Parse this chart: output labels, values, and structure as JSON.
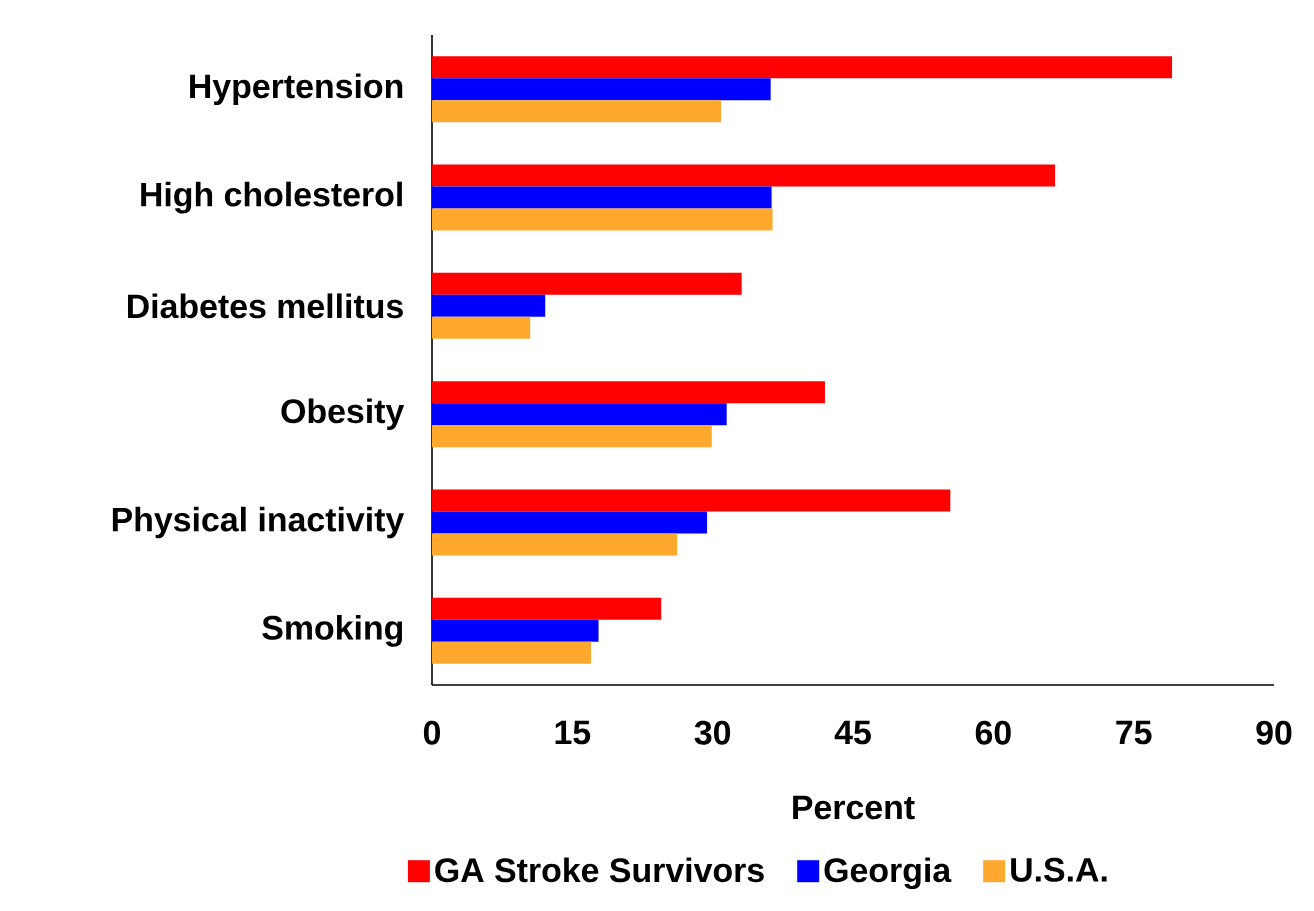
{
  "chart_data": {
    "type": "bar",
    "orientation": "horizontal",
    "xlabel": "Percent",
    "categories": [
      "Hypertension",
      "High cholesterol",
      "Diabetes mellitus",
      "Obesity",
      "Physical inactivity",
      "Smoking"
    ],
    "series": [
      {
        "name": "GA Stroke Survivors",
        "color": "#ff0000",
        "values": [
          79.1,
          66.6,
          33.1,
          42.0,
          55.4,
          24.5
        ]
      },
      {
        "name": "Georgia",
        "color": "#0000ff",
        "values": [
          36.2,
          36.3,
          12.1,
          31.5,
          29.4,
          17.8
        ]
      },
      {
        "name": "U.S.A.",
        "color": "#ffa82e",
        "values": [
          30.9,
          36.4,
          10.5,
          29.9,
          26.2,
          17.0
        ]
      }
    ],
    "xlim": [
      0,
      90
    ],
    "xticks": [
      0,
      15,
      30,
      45,
      60,
      75,
      90
    ],
    "legend": "bottom"
  }
}
